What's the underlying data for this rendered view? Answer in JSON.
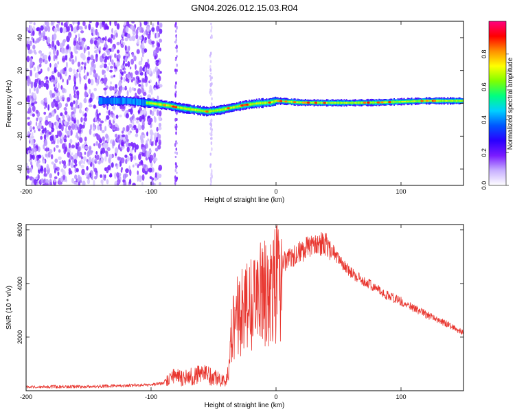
{
  "title": "GN04.2026.012.15.03.R04",
  "colors": {
    "snr_line": "#e8352e",
    "axis": "#000000",
    "band_core": "#ff0000",
    "spec_low": "#7722ff"
  },
  "chart_data": [
    {
      "type": "heatmap",
      "name": "spectrogram",
      "xlabel": "Height of straight line (km)",
      "ylabel": "Frequency (Hz)",
      "xlim": [
        -200,
        150
      ],
      "ylim": [
        -50,
        50
      ],
      "xticks": [
        -200,
        -100,
        0,
        100
      ],
      "yticks": [
        -40,
        -20,
        0,
        20,
        40
      ],
      "xtick_labels": [
        "-200",
        "-100",
        "0",
        "100"
      ],
      "ytick_labels": [
        "-40",
        "-20",
        "0",
        "20",
        "40"
      ],
      "colorbar": {
        "label": "Normalized spectral amplitude",
        "range": [
          0,
          1
        ],
        "ticks": [
          0,
          0.2,
          0.4,
          0.6,
          0.8
        ],
        "tick_labels": [
          "0.0",
          "0.2",
          "0.4",
          "0.6",
          "0.8"
        ],
        "colormap": [
          "#ffffff",
          "#c8b0ff",
          "#7a1cff",
          "#2a00ff",
          "#0055ff",
          "#00d0ff",
          "#00ff80",
          "#80ff00",
          "#ffff00",
          "#ff9000",
          "#ff0000",
          "#ff0080"
        ]
      },
      "band_center": [
        [
          -140,
          1.5
        ],
        [
          -120,
          1.5
        ],
        [
          -100,
          0
        ],
        [
          -85,
          -1.5
        ],
        [
          -75,
          -3
        ],
        [
          -65,
          -4
        ],
        [
          -55,
          -5
        ],
        [
          -45,
          -4
        ],
        [
          -35,
          -2.5
        ],
        [
          -25,
          -1
        ],
        [
          -15,
          0
        ],
        [
          -5,
          0.5
        ],
        [
          0,
          1.5
        ],
        [
          10,
          1
        ],
        [
          20,
          0.5
        ],
        [
          40,
          0.3
        ],
        [
          60,
          0.3
        ],
        [
          80,
          0.5
        ],
        [
          100,
          1
        ],
        [
          120,
          1.5
        ],
        [
          150,
          1.5
        ]
      ],
      "noise_region_x": [
        -200,
        -100
      ]
    },
    {
      "type": "line",
      "name": "snr",
      "xlabel": "Height of straight line (km)",
      "ylabel": "SNR (10 * v/v)",
      "xlim": [
        -200,
        150
      ],
      "ylim": [
        0,
        6200
      ],
      "xticks": [
        -200,
        -100,
        0,
        100
      ],
      "yticks": [
        2000,
        4000,
        6000
      ],
      "xtick_labels": [
        "-200",
        "-100",
        "0",
        "100"
      ],
      "ytick_labels": [
        "2000",
        "4000",
        "6000"
      ],
      "envelope": [
        [
          -200,
          150
        ],
        [
          -150,
          150
        ],
        [
          -100,
          220
        ],
        [
          -90,
          280
        ],
        [
          -85,
          700
        ],
        [
          -80,
          800
        ],
        [
          -75,
          650
        ],
        [
          -70,
          700
        ],
        [
          -65,
          900
        ],
        [
          -60,
          800
        ],
        [
          -55,
          850
        ],
        [
          -50,
          700
        ],
        [
          -45,
          600
        ],
        [
          -40,
          500
        ],
        [
          -37,
          1200
        ],
        [
          -35,
          3200
        ],
        [
          -30,
          3400
        ],
        [
          -25,
          3600
        ],
        [
          -20,
          3900
        ],
        [
          -15,
          4200
        ],
        [
          -10,
          4400
        ],
        [
          -5,
          4600
        ],
        [
          0,
          4800
        ],
        [
          10,
          5100
        ],
        [
          20,
          5400
        ],
        [
          30,
          5700
        ],
        [
          40,
          5700
        ],
        [
          50,
          5000
        ],
        [
          60,
          4500
        ],
        [
          70,
          4200
        ],
        [
          80,
          3900
        ],
        [
          90,
          3600
        ],
        [
          100,
          3400
        ],
        [
          110,
          3150
        ],
        [
          120,
          2900
        ],
        [
          130,
          2700
        ],
        [
          140,
          2450
        ],
        [
          150,
          2200
        ]
      ]
    }
  ]
}
